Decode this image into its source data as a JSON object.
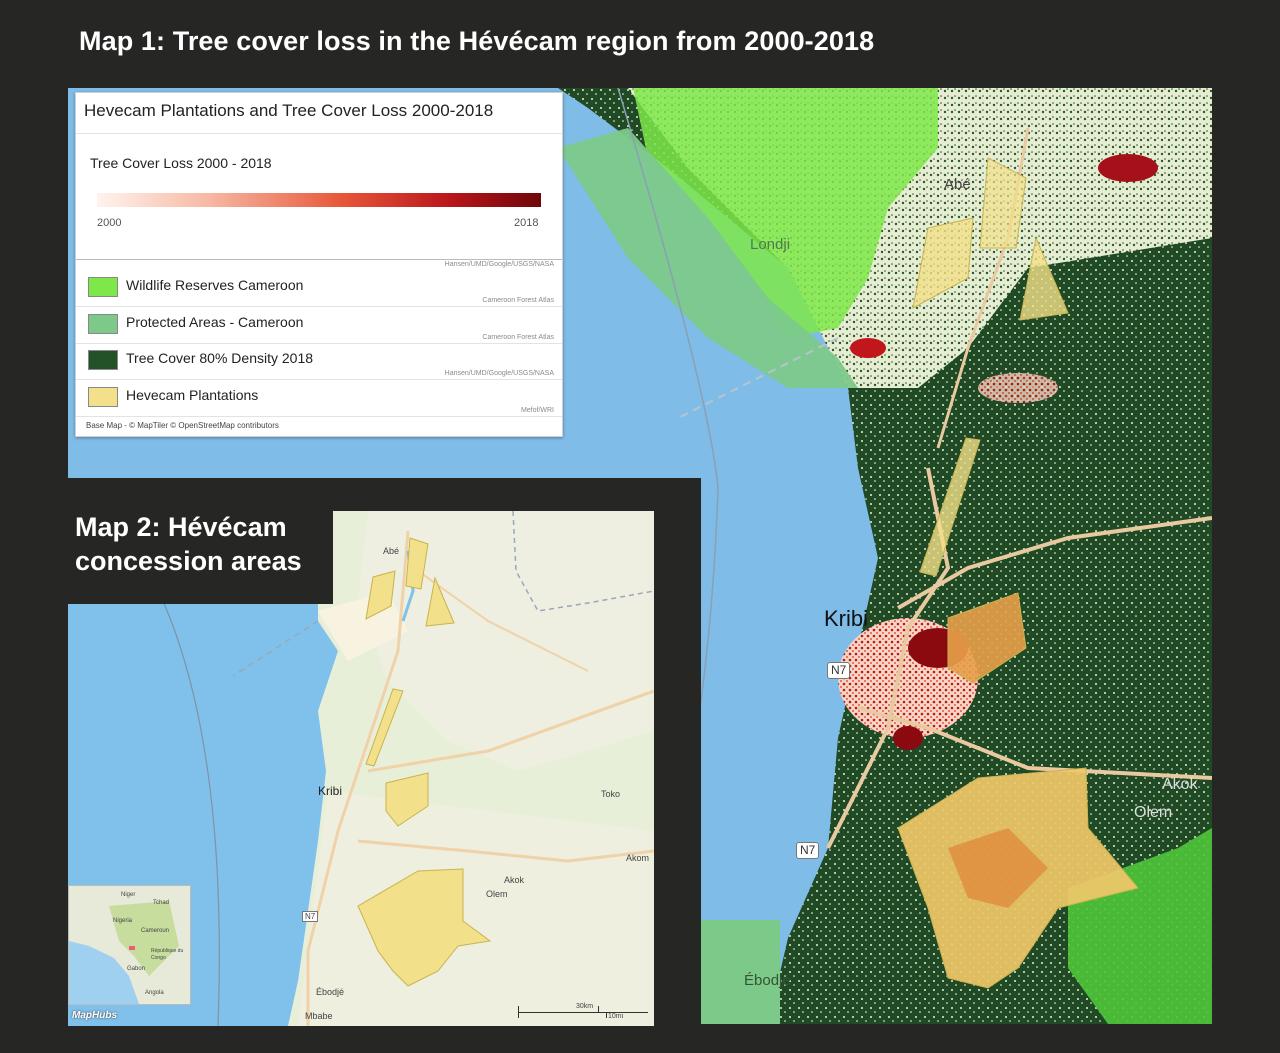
{
  "page_title": "Map 1: Tree cover loss in the Hévécam region from 2000-2018",
  "map1": {
    "legend": {
      "title": "Hevecam Plantations and Tree Cover Loss 2000-2018",
      "gradient_title": "Tree Cover Loss 2000 - 2018",
      "gradient_min": "2000",
      "gradient_max": "2018",
      "gradient_source": "Hansen/UMD/Google/USGS/NASA",
      "layers": [
        {
          "label": "Wildlife Reserves Cameroon",
          "source": "Cameroon Forest Atlas",
          "color": "#7ee84a"
        },
        {
          "label": "Protected Areas - Cameroon",
          "source": "Cameroon Forest Atlas",
          "color": "#7dc98a"
        },
        {
          "label": "Tree Cover 80% Density 2018",
          "source": "Hansen/UMD/Google/USGS/NASA",
          "color": "#235227"
        },
        {
          "label": "Hevecam Plantations",
          "source": "Mefof/WRI",
          "color": "#f2e08a"
        }
      ],
      "basemap_attribution": "Base Map - © MapTiler © OpenStreetMap contributors"
    },
    "place_labels": {
      "abe": "Abé",
      "londji": "Londji",
      "kribi": "Kribi",
      "akok": "Akok",
      "olem": "Olem",
      "ebodje": "Ébodjé"
    },
    "road_labels": {
      "n7_a": "N7",
      "n7_b": "N7"
    }
  },
  "map2": {
    "title": "Map 2: Hévécam concession areas",
    "place_labels": {
      "abe": "Abé",
      "kribi": "Kribi",
      "toko": "Toko",
      "akom": "Akom",
      "akok": "Akok",
      "olem": "Olem",
      "ebodje": "Ébodjé",
      "n7": "N7",
      "mbabe": "Mbabe"
    },
    "inset_labels": {
      "niger": "Niger",
      "tchad": "Tchad",
      "nigeria": "Nigeria",
      "cameroun": "Cameroun",
      "gabon": "Gabon",
      "rep_congo": "République du Congo",
      "angola": "Angola"
    },
    "scale": {
      "top": "30km",
      "bottom": "10mi"
    },
    "logo": "MapHubs"
  },
  "colors": {
    "ocean": "#7fbde8",
    "forest": "#1f4a24",
    "plantation": "#f2e08a",
    "loss_dark": "#8b0a10",
    "reserve": "#7ee84a"
  }
}
